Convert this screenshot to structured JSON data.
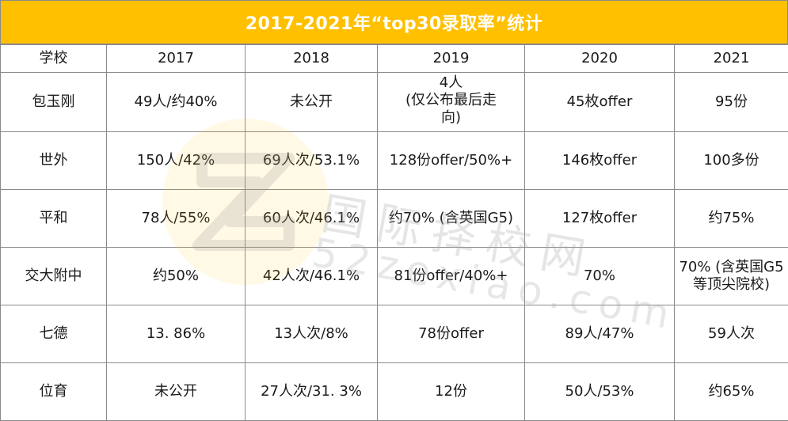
{
  "title": "2017-2021年“top30录取率”统计",
  "columns": [
    "学校",
    "2017",
    "2018",
    "2019",
    "2020",
    "2021"
  ],
  "rows": [
    {
      "school": "包玉刚",
      "y2017": "49人/约40%",
      "y2018": "未公开",
      "y2019_lines": [
        "4人",
        "(仅公布最后走",
        "向)"
      ],
      "y2020": "45枚offer",
      "y2021": "95份"
    },
    {
      "school": "世外",
      "y2017": "150人/42%",
      "y2018": "69人次/53.1%",
      "y2019": "128份offer/50%+",
      "y2020": "146枚offer",
      "y2021": "100多份"
    },
    {
      "school": "平和",
      "y2017": "78人/55%",
      "y2018": "60人次/46.1%",
      "y2019": "约70% (含英国G5)",
      "y2020": "127枚offer",
      "y2021": "约75%"
    },
    {
      "school": "交大附中",
      "y2017": "约50%",
      "y2018": "42人次/46.1%",
      "y2019": "81份offer/40%+",
      "y2020": "70%",
      "y2021_lines": [
        "70% (含英国G5",
        "等顶尖院校)"
      ]
    },
    {
      "school": "七德",
      "y2017": "13. 86%",
      "y2018": "13人次/8%",
      "y2019": "78份offer",
      "y2020": "89人/47%",
      "y2021": "59人次"
    },
    {
      "school": "位育",
      "y2017": "未公开",
      "y2018": "27人次/31. 3%",
      "y2019": "12份",
      "y2020": "50人/53%",
      "y2021": "约65%"
    }
  ],
  "watermark": {
    "cn": "国际择校网",
    "en": "52zexiao.com"
  },
  "colors": {
    "header_bg": "#FFC000",
    "header_text": "#FFFFFF",
    "grid": "#8A8A8A",
    "text": "#1A1A1A"
  }
}
